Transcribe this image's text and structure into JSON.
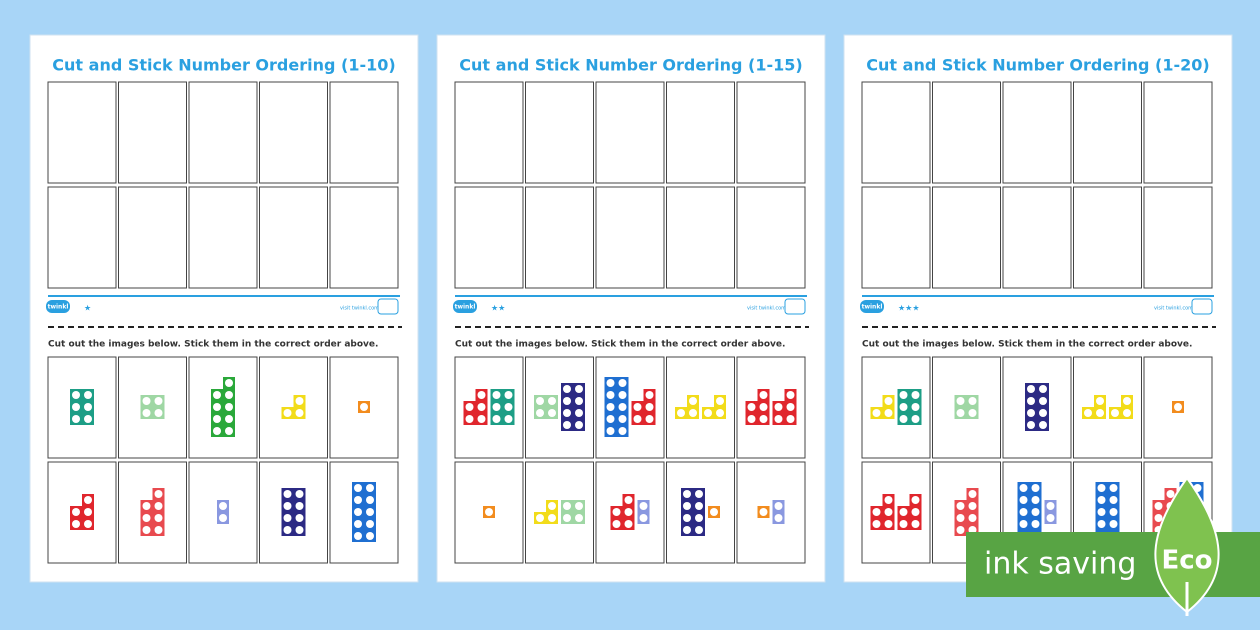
{
  "pages": [
    {
      "title": "Cut and Stick Number Ordering (1-10)",
      "stars": "★",
      "logo": "twinkl",
      "website": "visit twinkl.com",
      "instructions": "Cut out the images below. Stick them in the correct order above."
    },
    {
      "title": "Cut and Stick Number Ordering (1-15)",
      "stars": "★★",
      "logo": "twinkl",
      "website": "visit twinkl.com",
      "instructions": "Cut out the images below. Stick them in the correct order above."
    },
    {
      "title": "Cut and Stick Number Ordering (1-20)",
      "stars": "★★★",
      "logo": "twinkl",
      "website": "visit twinkl.com",
      "instructions": "Cut out the images below. Stick them in the correct order above."
    }
  ],
  "badge": {
    "label": "ink saving",
    "eco": "Eco"
  }
}
